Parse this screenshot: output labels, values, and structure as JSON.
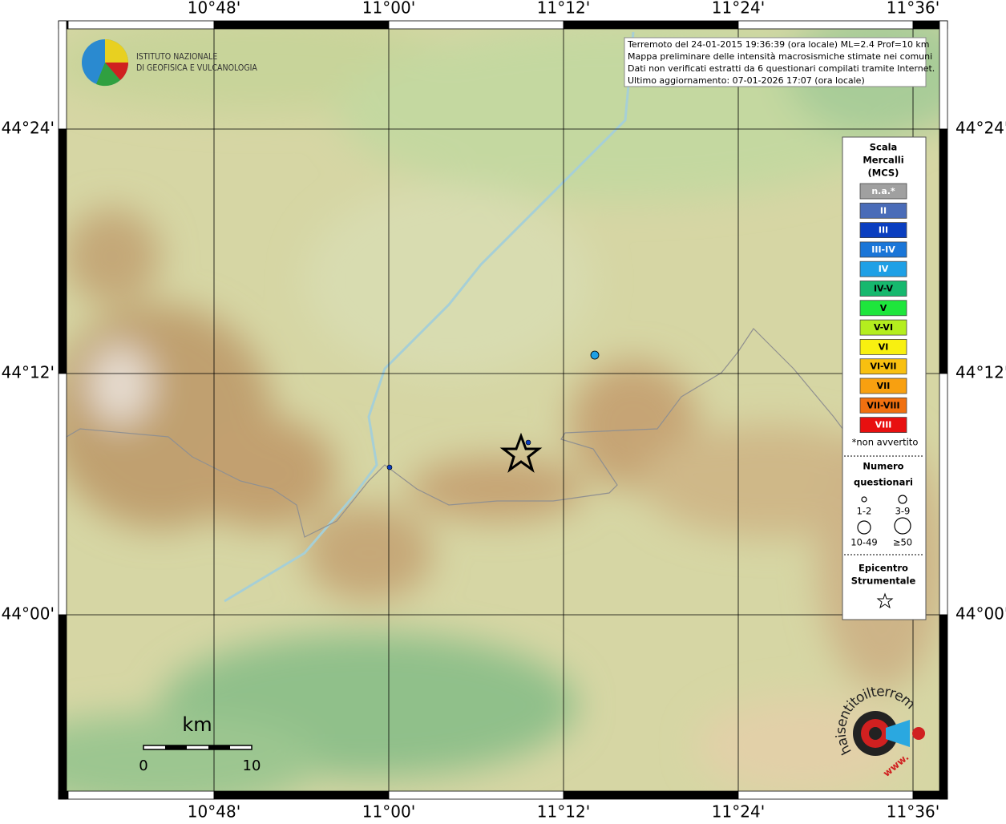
{
  "grid_labels": {
    "longitude": [
      "10°48'",
      "11°00'",
      "11°12'",
      "11°24'",
      "11°36'"
    ],
    "latitude": [
      "44°24'",
      "44°12'",
      "44°00'"
    ]
  },
  "logo": {
    "line1": "ISTITUTO NAZIONALE",
    "line2": "DI GEOFISICA E VULCANOLOGIA"
  },
  "info": [
    "Terremoto del 24-01-2015 19:36:39 (ora locale) ML=2.4 Prof=10 km",
    "Mappa preliminare delle intensità macrosismiche stimate nei comuni",
    "Dati non verificati estratti da 6 questionari compilati tramite Internet.",
    "Ultimo aggiornamento: 07-01-2026 17:07 (ora locale)"
  ],
  "legend": {
    "title": [
      "Scala",
      "Mercalli",
      "(MCS)"
    ],
    "classes": [
      {
        "label": "n.a.*",
        "color": "#a0a0a0",
        "text_color": "#ffffff"
      },
      {
        "label": "II",
        "color": "#4a6cb8",
        "text_color": "#ffffff"
      },
      {
        "label": "III",
        "color": "#0a3ec0",
        "text_color": "#ffffff"
      },
      {
        "label": "III-IV",
        "color": "#1a76d8",
        "text_color": "#ffffff"
      },
      {
        "label": "IV",
        "color": "#1ea0e6",
        "text_color": "#ffffff"
      },
      {
        "label": "IV-V",
        "color": "#16b86e",
        "text_color": "#000000"
      },
      {
        "label": "V",
        "color": "#1ee63c",
        "text_color": "#000000"
      },
      {
        "label": "V-VI",
        "color": "#b4ee1e",
        "text_color": "#000000"
      },
      {
        "label": "VI",
        "color": "#f8f010",
        "text_color": "#000000"
      },
      {
        "label": "VI-VII",
        "color": "#f8c010",
        "text_color": "#000000"
      },
      {
        "label": "VII",
        "color": "#f8a010",
        "text_color": "#000000"
      },
      {
        "label": "VII-VIII",
        "color": "#f07010",
        "text_color": "#000000"
      },
      {
        "label": "VIII",
        "color": "#e81010",
        "text_color": "#ffffff"
      }
    ],
    "note": "*non avvertito",
    "count_title": [
      "Numero",
      "questionari"
    ],
    "counts": [
      "1-2",
      "3-9",
      "10-49",
      "≥50"
    ],
    "epicenter_title": [
      "Epicentro",
      "Strumentale"
    ]
  },
  "scale_bar": {
    "unit": "km",
    "start": "0",
    "end": "10"
  },
  "site_logo": {
    "text": "haisentitoilterremoto.it",
    "prefix": "www."
  }
}
